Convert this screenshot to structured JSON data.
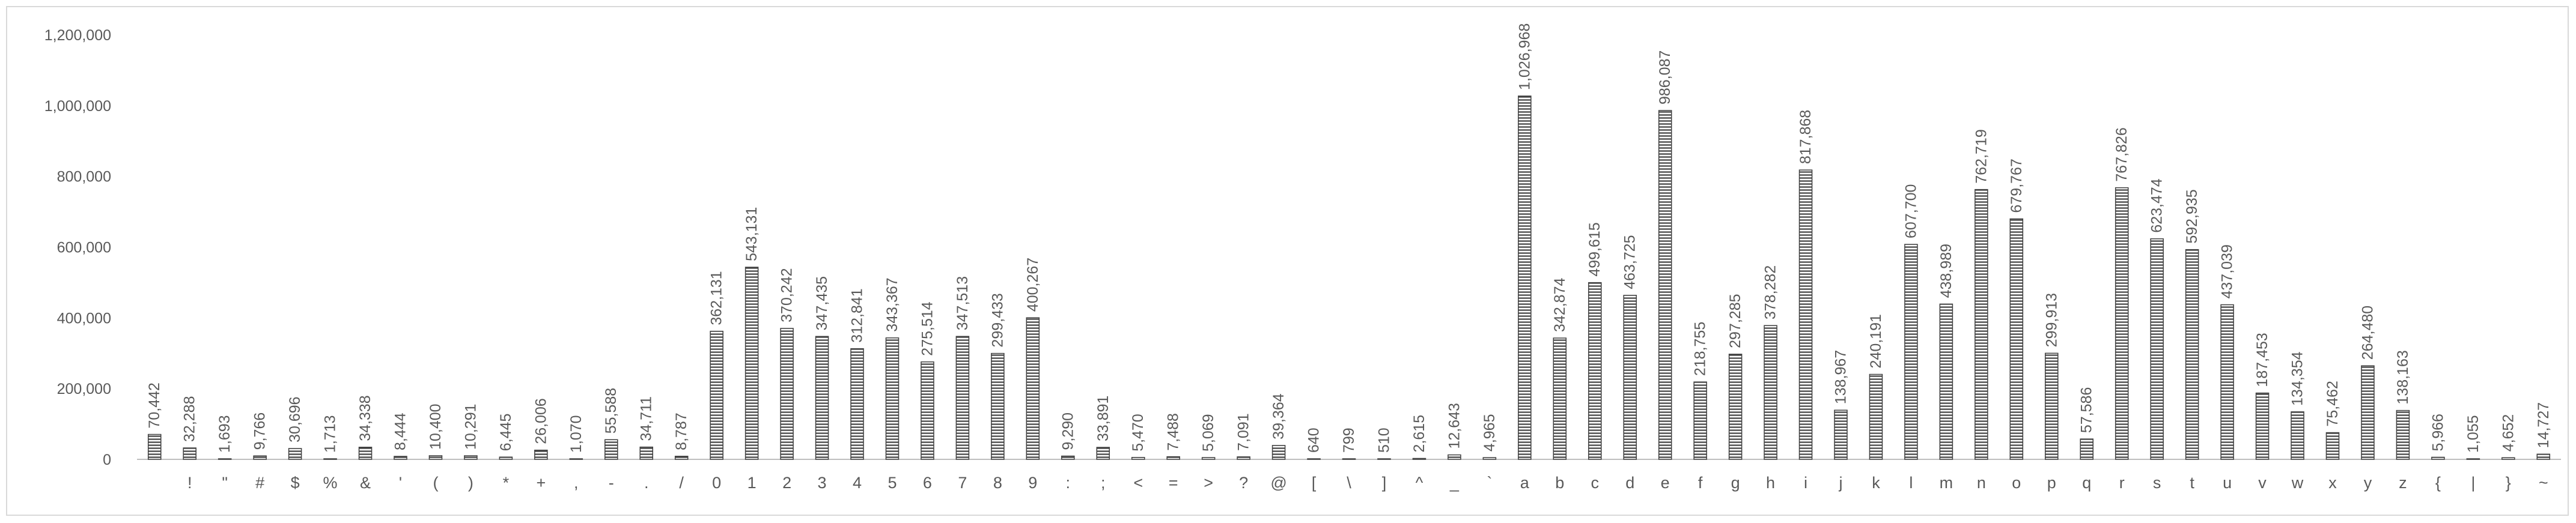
{
  "chart_data": {
    "type": "bar",
    "categories": [
      " ",
      "!",
      "\"",
      "#",
      "$",
      "%",
      "&",
      "'",
      "(",
      ")",
      "*",
      "+",
      ",",
      "-",
      ".",
      "/",
      "0",
      "1",
      "2",
      "3",
      "4",
      "5",
      "6",
      "7",
      "8",
      "9",
      ":",
      ";",
      "<",
      "=",
      ">",
      "?",
      "@",
      "[",
      "\\",
      "]",
      "^",
      "_",
      "`",
      "a",
      "b",
      "c",
      "d",
      "e",
      "f",
      "g",
      "h",
      "i",
      "j",
      "k",
      "l",
      "m",
      "n",
      "o",
      "p",
      "q",
      "r",
      "s",
      "t",
      "u",
      "v",
      "w",
      "x",
      "y",
      "z",
      "{",
      "|",
      "}",
      "~"
    ],
    "values": [
      70442,
      32288,
      1693,
      9766,
      30696,
      1713,
      34338,
      8444,
      10400,
      10291,
      6445,
      26006,
      1070,
      55588,
      34711,
      8787,
      362131,
      543131,
      370242,
      347435,
      312841,
      343367,
      275514,
      347513,
      299433,
      400267,
      9290,
      33891,
      5470,
      7488,
      5069,
      7091,
      39364,
      640,
      799,
      510,
      2615,
      12643,
      4965,
      1026968,
      342874,
      499615,
      463725,
      986087,
      218755,
      297285,
      378282,
      817868,
      138967,
      240191,
      607700,
      438989,
      762719,
      679767,
      299913,
      57586,
      767826,
      623474,
      592935,
      437039,
      187453,
      134354,
      75462,
      264480,
      138163,
      5966,
      1055,
      4652,
      14727
    ],
    "data_labels": [
      "70,442",
      "32,288",
      "1,693",
      "9,766",
      "30,696",
      "1,713",
      "34,338",
      "8,444",
      "10,400",
      "10,291",
      "6,445",
      "26,006",
      "1,070",
      "55,588",
      "34,711",
      "8,787",
      "362,131",
      "543,131",
      "370,242",
      "347,435",
      "312,841",
      "343,367",
      "275,514",
      "347,513",
      "299,433",
      "400,267",
      "9,290",
      "33,891",
      "5,470",
      "7,488",
      "5,069",
      "7,091",
      "39,364",
      "640",
      "799",
      "510",
      "2,615",
      "12,643",
      "4,965",
      "1,026,968",
      "342,874",
      "499,615",
      "463,725",
      "986,087",
      "218,755",
      "297,285",
      "378,282",
      "817,868",
      "138,967",
      "240,191",
      "607,700",
      "438,989",
      "762,719",
      "679,767",
      "299,913",
      "57,586",
      "767,826",
      "623,474",
      "592,935",
      "437,039",
      "187,453",
      "134,354",
      "75,462",
      "264,480",
      "138,163",
      "5,966",
      "1,055",
      "4,652",
      "14,727"
    ],
    "y_ticks": [
      "0",
      "200,000",
      "400,000",
      "600,000",
      "800,000",
      "1,000,000",
      "1,200,000"
    ],
    "ylim": [
      0,
      1200000
    ],
    "title": "",
    "xlabel": "",
    "ylabel": "",
    "grid": false,
    "legend": "none",
    "bar_pattern": "horizontal-hatch",
    "colors": {
      "bar_stroke": "#404040",
      "bar_hatch": "#404040",
      "text": "#595959",
      "axis": "#bfbfbf",
      "frame": "#d9d9d9"
    }
  }
}
